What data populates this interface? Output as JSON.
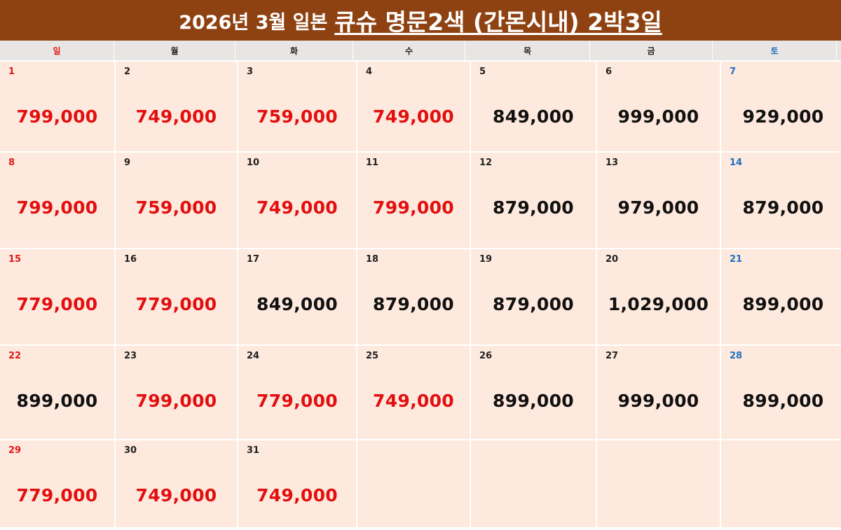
{
  "title": {
    "part1": "2026년 3월 일본",
    "part2": "큐슈 명문2색 (간몬시내) 2박3일"
  },
  "colors": {
    "banner_bg": "#8f4211",
    "cell_bg": "#fde9dd",
    "red_price": "#e30f0f",
    "black_price": "#111111",
    "sunday": "#e01a1a",
    "saturday": "#1f6fc0"
  },
  "weekdays": [
    "일",
    "월",
    "화",
    "수",
    "목",
    "금",
    "토"
  ],
  "days": [
    {
      "day": "1",
      "price": "799,000",
      "red": true
    },
    {
      "day": "2",
      "price": "749,000",
      "red": true
    },
    {
      "day": "3",
      "price": "759,000",
      "red": true
    },
    {
      "day": "4",
      "price": "749,000",
      "red": true
    },
    {
      "day": "5",
      "price": "849,000",
      "red": false
    },
    {
      "day": "6",
      "price": "999,000",
      "red": false
    },
    {
      "day": "7",
      "price": "929,000",
      "red": false
    },
    {
      "day": "8",
      "price": "799,000",
      "red": true
    },
    {
      "day": "9",
      "price": "759,000",
      "red": true
    },
    {
      "day": "10",
      "price": "749,000",
      "red": true
    },
    {
      "day": "11",
      "price": "799,000",
      "red": true
    },
    {
      "day": "12",
      "price": "879,000",
      "red": false
    },
    {
      "day": "13",
      "price": "979,000",
      "red": false
    },
    {
      "day": "14",
      "price": "879,000",
      "red": false
    },
    {
      "day": "15",
      "price": "779,000",
      "red": true
    },
    {
      "day": "16",
      "price": "779,000",
      "red": true
    },
    {
      "day": "17",
      "price": "849,000",
      "red": false
    },
    {
      "day": "18",
      "price": "879,000",
      "red": false
    },
    {
      "day": "19",
      "price": "879,000",
      "red": false
    },
    {
      "day": "20",
      "price": "1,029,000",
      "red": false
    },
    {
      "day": "21",
      "price": "899,000",
      "red": false
    },
    {
      "day": "22",
      "price": "899,000",
      "red": false
    },
    {
      "day": "23",
      "price": "799,000",
      "red": true
    },
    {
      "day": "24",
      "price": "779,000",
      "red": true
    },
    {
      "day": "25",
      "price": "749,000",
      "red": true
    },
    {
      "day": "26",
      "price": "899,000",
      "red": false
    },
    {
      "day": "27",
      "price": "999,000",
      "red": false
    },
    {
      "day": "28",
      "price": "899,000",
      "red": false
    },
    {
      "day": "29",
      "price": "779,000",
      "red": true
    },
    {
      "day": "30",
      "price": "749,000",
      "red": true
    },
    {
      "day": "31",
      "price": "749,000",
      "red": true
    }
  ]
}
